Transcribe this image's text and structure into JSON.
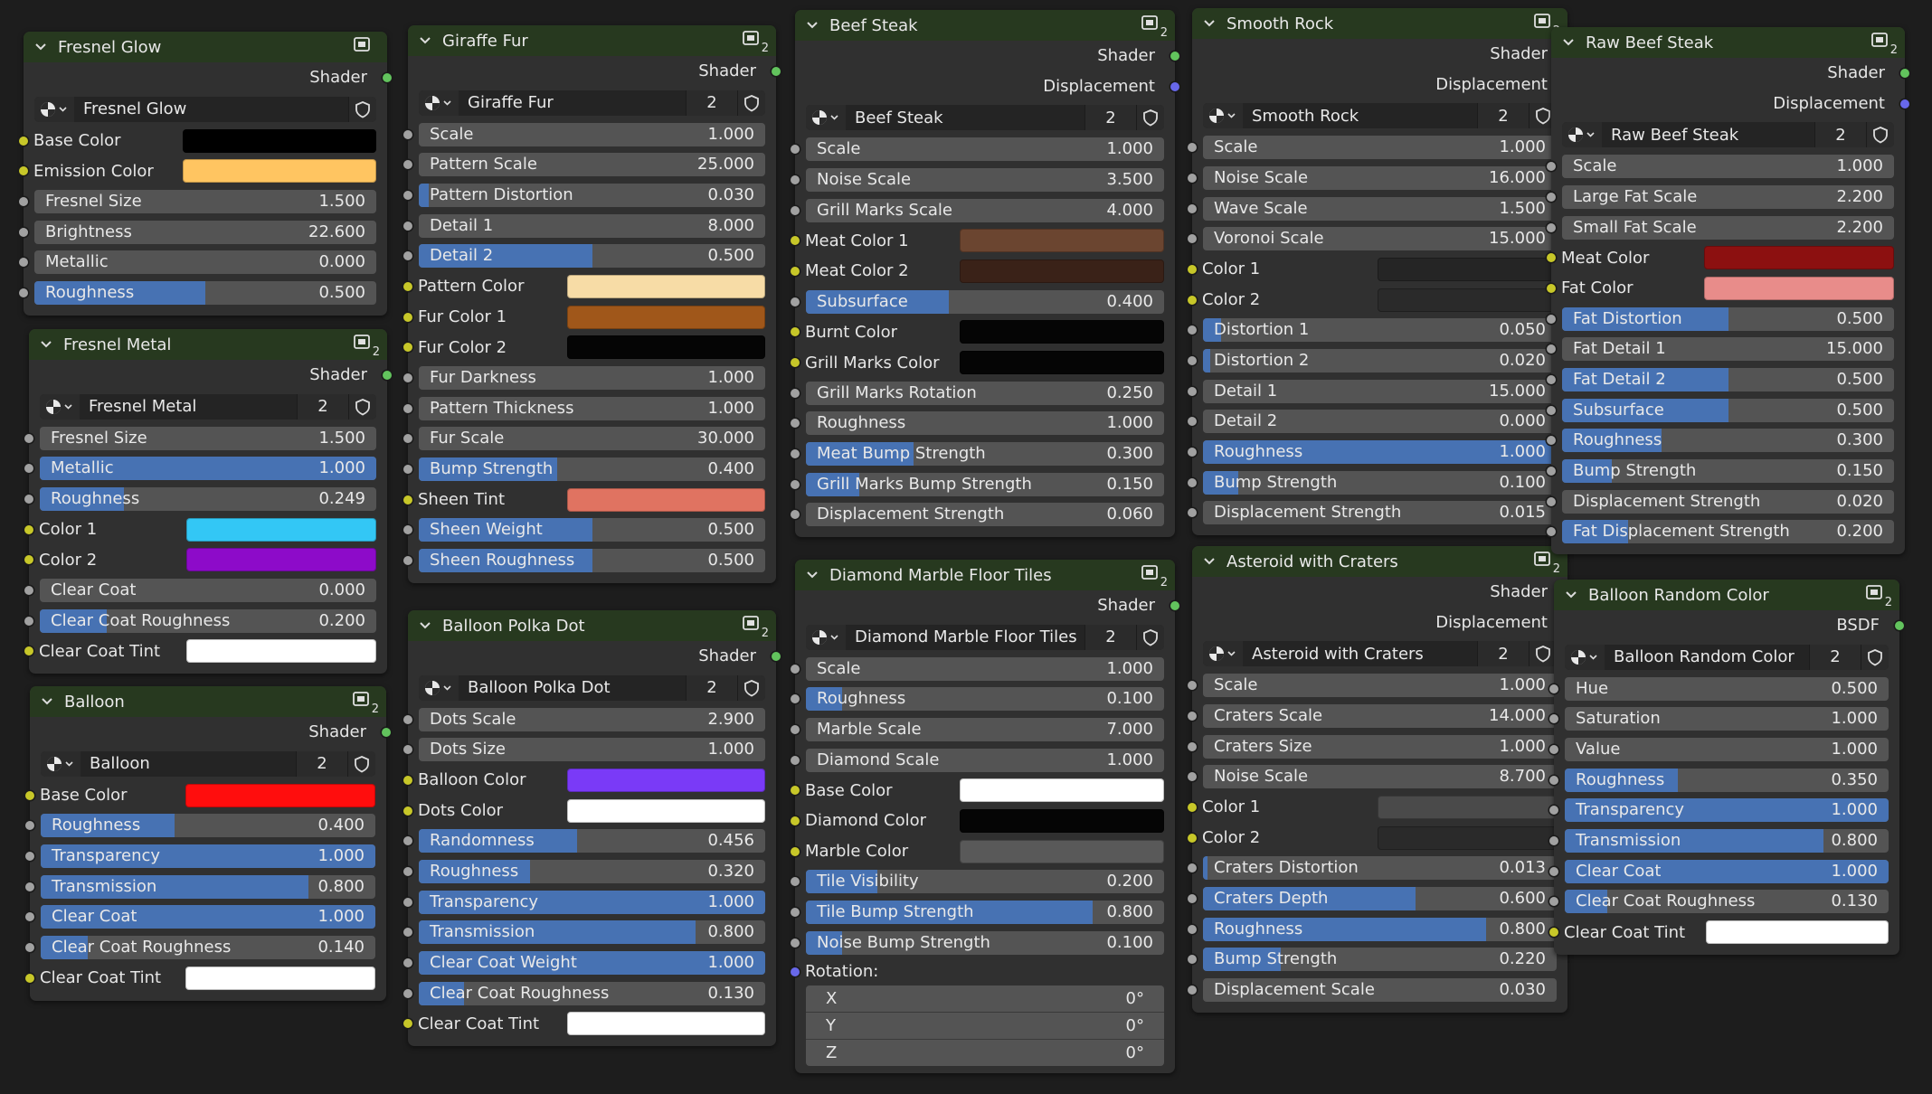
{
  "colors": {
    "background": "#1d1d1d",
    "node_body": "#303030",
    "node_header": "#27391f",
    "slider": "#545454",
    "slider_fill": "#4772b3",
    "socket_shader": "#62c35d",
    "socket_vector": "#6868ea",
    "socket_color": "#c7c729",
    "socket_float": "#a1a1a1"
  },
  "icons": {
    "collapse": "chevron-down-icon",
    "group": "node-group-icon",
    "browse": "sphere-material-icon",
    "fake_user": "shield-icon"
  },
  "nodes": [
    {
      "title": "Fresnel Glow",
      "group_badge": "",
      "outputs": [
        {
          "label": "Shader",
          "socket": "green"
        }
      ],
      "select": {
        "name": "Fresnel Glow",
        "users": ""
      },
      "inputs": [
        {
          "kind": "color",
          "label": "Base Color",
          "color": "#000000"
        },
        {
          "kind": "color",
          "label": "Emission Color",
          "color": "#ffc561"
        },
        {
          "kind": "num",
          "label": "Fresnel Size",
          "value": "1.500",
          "fill": 0
        },
        {
          "kind": "num",
          "label": "Brightness",
          "value": "22.600",
          "fill": 0
        },
        {
          "kind": "num",
          "label": "Metallic",
          "value": "0.000",
          "fill": 0
        },
        {
          "kind": "num",
          "label": "Roughness",
          "value": "0.500",
          "fill": 0.5
        }
      ]
    },
    {
      "title": "Fresnel Metal",
      "group_badge": "2",
      "outputs": [
        {
          "label": "Shader",
          "socket": "green"
        }
      ],
      "select": {
        "name": "Fresnel Metal",
        "users": "2"
      },
      "inputs": [
        {
          "kind": "num",
          "label": "Fresnel Size",
          "value": "1.500",
          "fill": 0
        },
        {
          "kind": "num",
          "label": "Metallic",
          "value": "1.000",
          "fill": 1
        },
        {
          "kind": "num",
          "label": "Roughness",
          "value": "0.249",
          "fill": 0.249
        },
        {
          "kind": "color",
          "label": "Color 1",
          "color": "#33c7f5"
        },
        {
          "kind": "color",
          "label": "Color 2",
          "color": "#8d0bc9"
        },
        {
          "kind": "num",
          "label": "Clear Coat",
          "value": "0.000",
          "fill": 0
        },
        {
          "kind": "num",
          "label": "Clear Coat Roughness",
          "value": "0.200",
          "fill": 0.2
        },
        {
          "kind": "color",
          "label": "Clear Coat Tint",
          "color": "#ffffff"
        }
      ]
    },
    {
      "title": "Balloon",
      "group_badge": "2",
      "outputs": [
        {
          "label": "Shader",
          "socket": "green"
        }
      ],
      "select": {
        "name": "Balloon",
        "users": "2"
      },
      "inputs": [
        {
          "kind": "color",
          "label": "Base Color",
          "color": "#ff0d0d"
        },
        {
          "kind": "num",
          "label": "Roughness",
          "value": "0.400",
          "fill": 0.4
        },
        {
          "kind": "num",
          "label": "Transparency",
          "value": "1.000",
          "fill": 1
        },
        {
          "kind": "num",
          "label": "Transmission",
          "value": "0.800",
          "fill": 0.8
        },
        {
          "kind": "num",
          "label": "Clear Coat",
          "value": "1.000",
          "fill": 1
        },
        {
          "kind": "num",
          "label": "Clear Coat Roughness",
          "value": "0.140",
          "fill": 0.14
        },
        {
          "kind": "color",
          "label": "Clear Coat Tint",
          "color": "#ffffff"
        }
      ]
    },
    {
      "title": "Giraffe Fur",
      "group_badge": "2",
      "outputs": [
        {
          "label": "Shader",
          "socket": "green"
        }
      ],
      "select": {
        "name": "Giraffe Fur",
        "users": "2"
      },
      "inputs": [
        {
          "kind": "num",
          "label": "Scale",
          "value": "1.000",
          "fill": 0
        },
        {
          "kind": "num",
          "label": "Pattern Scale",
          "value": "25.000",
          "fill": 0
        },
        {
          "kind": "num",
          "label": "Pattern Distortion",
          "value": "0.030",
          "fill": 0.03
        },
        {
          "kind": "num",
          "label": "Detail 1",
          "value": "8.000",
          "fill": 0
        },
        {
          "kind": "num",
          "label": "Detail 2",
          "value": "0.500",
          "fill": 0.5
        },
        {
          "kind": "color",
          "label": "Pattern Color",
          "color": "#f7dca6"
        },
        {
          "kind": "color",
          "label": "Fur Color 1",
          "color": "#a0571a"
        },
        {
          "kind": "color",
          "label": "Fur Color 2",
          "color": "#050505"
        },
        {
          "kind": "num",
          "label": "Fur Darkness",
          "value": "1.000",
          "fill": 0
        },
        {
          "kind": "num",
          "label": "Pattern Thickness",
          "value": "1.000",
          "fill": 0
        },
        {
          "kind": "num",
          "label": "Fur Scale",
          "value": "30.000",
          "fill": 0
        },
        {
          "kind": "num",
          "label": "Bump Strength",
          "value": "0.400",
          "fill": 0.4
        },
        {
          "kind": "color",
          "label": "Sheen Tint",
          "color": "#e07361"
        },
        {
          "kind": "num",
          "label": "Sheen Weight",
          "value": "0.500",
          "fill": 0.5
        },
        {
          "kind": "num",
          "label": "Sheen Roughness",
          "value": "0.500",
          "fill": 0.5
        }
      ]
    },
    {
      "title": "Balloon Polka Dot",
      "group_badge": "2",
      "outputs": [
        {
          "label": "Shader",
          "socket": "green"
        }
      ],
      "select": {
        "name": "Balloon Polka Dot",
        "users": "2"
      },
      "inputs": [
        {
          "kind": "num",
          "label": "Dots Scale",
          "value": "2.900",
          "fill": 0
        },
        {
          "kind": "num",
          "label": "Dots Size",
          "value": "1.000",
          "fill": 0
        },
        {
          "kind": "color",
          "label": "Balloon Color",
          "color": "#7a3af7"
        },
        {
          "kind": "color",
          "label": "Dots Color",
          "color": "#ffffff"
        },
        {
          "kind": "num",
          "label": "Randomness",
          "value": "0.456",
          "fill": 0.456
        },
        {
          "kind": "num",
          "label": "Roughness",
          "value": "0.320",
          "fill": 0.32
        },
        {
          "kind": "num",
          "label": "Transparency",
          "value": "1.000",
          "fill": 1
        },
        {
          "kind": "num",
          "label": "Transmission",
          "value": "0.800",
          "fill": 0.8
        },
        {
          "kind": "num",
          "label": "Clear Coat Weight",
          "value": "1.000",
          "fill": 1
        },
        {
          "kind": "num",
          "label": "Clear Coat Roughness",
          "value": "0.130",
          "fill": 0.13
        },
        {
          "kind": "color",
          "label": "Clear Coat Tint",
          "color": "#ffffff"
        }
      ]
    },
    {
      "title": "Beef Steak",
      "group_badge": "2",
      "outputs": [
        {
          "label": "Shader",
          "socket": "green"
        },
        {
          "label": "Displacement",
          "socket": "purple"
        }
      ],
      "select": {
        "name": "Beef Steak",
        "users": "2"
      },
      "inputs": [
        {
          "kind": "num",
          "label": "Scale",
          "value": "1.000",
          "fill": 0
        },
        {
          "kind": "num",
          "label": "Noise Scale",
          "value": "3.500",
          "fill": 0
        },
        {
          "kind": "num",
          "label": "Grill Marks Scale",
          "value": "4.000",
          "fill": 0
        },
        {
          "kind": "color",
          "label": "Meat Color 1",
          "color": "#6b4530"
        },
        {
          "kind": "color",
          "label": "Meat Color 2",
          "color": "#3a2218"
        },
        {
          "kind": "num",
          "label": "Subsurface",
          "value": "0.400",
          "fill": 0.4
        },
        {
          "kind": "color",
          "label": "Burnt Color",
          "color": "#050505"
        },
        {
          "kind": "color",
          "label": "Grill Marks Color",
          "color": "#050505"
        },
        {
          "kind": "num",
          "label": "Grill Marks Rotation",
          "value": "0.250",
          "fill": 0
        },
        {
          "kind": "num",
          "label": "Roughness",
          "value": "1.000",
          "fill": 0
        },
        {
          "kind": "num",
          "label": "Meat Bump Strength",
          "value": "0.300",
          "fill": 0.3
        },
        {
          "kind": "num",
          "label": "Grill Marks Bump Strength",
          "value": "0.150",
          "fill": 0.15
        },
        {
          "kind": "num",
          "label": "Displacement Strength",
          "value": "0.060",
          "fill": 0
        }
      ]
    },
    {
      "title": "Diamond Marble Floor Tiles",
      "group_badge": "2",
      "outputs": [
        {
          "label": "Shader",
          "socket": "green"
        }
      ],
      "select": {
        "name": "Diamond Marble Floor Tiles",
        "users": "2"
      },
      "inputs": [
        {
          "kind": "num",
          "label": "Scale",
          "value": "1.000",
          "fill": 0
        },
        {
          "kind": "num",
          "label": "Roughness",
          "value": "0.100",
          "fill": 0.1
        },
        {
          "kind": "num",
          "label": "Marble Scale",
          "value": "7.000",
          "fill": 0
        },
        {
          "kind": "num",
          "label": "Diamond Scale",
          "value": "1.000",
          "fill": 0
        },
        {
          "kind": "color",
          "label": "Base Color",
          "color": "#ffffff"
        },
        {
          "kind": "color",
          "label": "Diamond Color",
          "color": "#050505"
        },
        {
          "kind": "color",
          "label": "Marble Color",
          "color": "#595959"
        },
        {
          "kind": "num",
          "label": "Tile Visibility",
          "value": "0.200",
          "fill": 0.2
        },
        {
          "kind": "num",
          "label": "Tile Bump Strength",
          "value": "0.800",
          "fill": 0.8
        },
        {
          "kind": "num",
          "label": "Noise Bump Strength",
          "value": "0.100",
          "fill": 0.1
        },
        {
          "kind": "label",
          "label": "Rotation:",
          "socket": "purple"
        },
        {
          "kind": "vector",
          "rows": [
            {
              "axis": "X",
              "value": "0°"
            },
            {
              "axis": "Y",
              "value": "0°"
            },
            {
              "axis": "Z",
              "value": "0°"
            }
          ]
        }
      ]
    },
    {
      "title": "Smooth Rock",
      "group_badge": "2",
      "outputs": [
        {
          "label": "Shader",
          "socket": "green"
        },
        {
          "label": "Displacement",
          "socket": "purple"
        }
      ],
      "select": {
        "name": "Smooth Rock",
        "users": "2"
      },
      "inputs": [
        {
          "kind": "num",
          "label": "Scale",
          "value": "1.000",
          "fill": 0
        },
        {
          "kind": "num",
          "label": "Noise Scale",
          "value": "16.000",
          "fill": 0
        },
        {
          "kind": "num",
          "label": "Wave Scale",
          "value": "1.500",
          "fill": 0
        },
        {
          "kind": "num",
          "label": "Voronoi Scale",
          "value": "15.000",
          "fill": 0
        },
        {
          "kind": "color",
          "label": "Color 1",
          "color": "#252525"
        },
        {
          "kind": "color",
          "label": "Color 2",
          "color": "#2a2a2a"
        },
        {
          "kind": "num",
          "label": "Distortion 1",
          "value": "0.050",
          "fill": 0.05
        },
        {
          "kind": "num",
          "label": "Distortion 2",
          "value": "0.020",
          "fill": 0.02
        },
        {
          "kind": "num",
          "label": "Detail 1",
          "value": "15.000",
          "fill": 0
        },
        {
          "kind": "num",
          "label": "Detail 2",
          "value": "0.000",
          "fill": 0
        },
        {
          "kind": "num",
          "label": "Roughness",
          "value": "1.000",
          "fill": 1
        },
        {
          "kind": "num",
          "label": "Bump Strength",
          "value": "0.100",
          "fill": 0.1
        },
        {
          "kind": "num",
          "label": "Displacement Strength",
          "value": "0.015",
          "fill": 0
        }
      ]
    },
    {
      "title": "Asteroid with Craters",
      "group_badge": "2",
      "outputs": [
        {
          "label": "Shader",
          "socket": "green"
        },
        {
          "label": "Displacement",
          "socket": "purple"
        }
      ],
      "select": {
        "name": "Asteroid with Craters",
        "users": "2"
      },
      "inputs": [
        {
          "kind": "num",
          "label": "Scale",
          "value": "1.000",
          "fill": 0
        },
        {
          "kind": "num",
          "label": "Craters Scale",
          "value": "14.000",
          "fill": 0
        },
        {
          "kind": "num",
          "label": "Craters Size",
          "value": "1.000",
          "fill": 0
        },
        {
          "kind": "num",
          "label": "Noise Scale",
          "value": "8.700",
          "fill": 0
        },
        {
          "kind": "color",
          "label": "Color 1",
          "color": "#4a4a4a"
        },
        {
          "kind": "color",
          "label": "Color 2",
          "color": "#2a2a2a"
        },
        {
          "kind": "num",
          "label": "Craters Distortion",
          "value": "0.013",
          "fill": 0.013
        },
        {
          "kind": "num",
          "label": "Craters Depth",
          "value": "0.600",
          "fill": 0.6
        },
        {
          "kind": "num",
          "label": "Roughness",
          "value": "0.800",
          "fill": 0.8
        },
        {
          "kind": "num",
          "label": "Bump Strength",
          "value": "0.220",
          "fill": 0.22
        },
        {
          "kind": "num",
          "label": "Displacement Scale",
          "value": "0.030",
          "fill": 0
        }
      ]
    },
    {
      "title": "Raw Beef Steak",
      "group_badge": "2",
      "outputs": [
        {
          "label": "Shader",
          "socket": "green"
        },
        {
          "label": "Displacement",
          "socket": "purple"
        }
      ],
      "select": {
        "name": "Raw Beef Steak",
        "users": "2"
      },
      "inputs": [
        {
          "kind": "num",
          "label": "Scale",
          "value": "1.000",
          "fill": 0
        },
        {
          "kind": "num",
          "label": "Large Fat Scale",
          "value": "2.200",
          "fill": 0
        },
        {
          "kind": "num",
          "label": "Small Fat Scale",
          "value": "2.200",
          "fill": 0
        },
        {
          "kind": "color",
          "label": "Meat Color",
          "color": "#8c1010"
        },
        {
          "kind": "color",
          "label": "Fat Color",
          "color": "#e88c8a"
        },
        {
          "kind": "num",
          "label": "Fat Distortion",
          "value": "0.500",
          "fill": 0.5
        },
        {
          "kind": "num",
          "label": "Fat Detail 1",
          "value": "15.000",
          "fill": 0
        },
        {
          "kind": "num",
          "label": "Fat Detail 2",
          "value": "0.500",
          "fill": 0.5
        },
        {
          "kind": "num",
          "label": "Subsurface",
          "value": "0.500",
          "fill": 0.5
        },
        {
          "kind": "num",
          "label": "Roughness",
          "value": "0.300",
          "fill": 0.3
        },
        {
          "kind": "num",
          "label": "Bump Strength",
          "value": "0.150",
          "fill": 0.15
        },
        {
          "kind": "num",
          "label": "Displacement Strength",
          "value": "0.020",
          "fill": 0
        },
        {
          "kind": "num",
          "label": "Fat Displacement Strength",
          "value": "0.200",
          "fill": 0.2
        }
      ]
    },
    {
      "title": "Balloon Random Color",
      "group_badge": "2",
      "outputs": [
        {
          "label": "BSDF",
          "socket": "green"
        }
      ],
      "select": {
        "name": "Balloon Random Color",
        "users": "2"
      },
      "inputs": [
        {
          "kind": "num",
          "label": "Hue",
          "value": "0.500",
          "fill": 0
        },
        {
          "kind": "num",
          "label": "Saturation",
          "value": "1.000",
          "fill": 0
        },
        {
          "kind": "num",
          "label": "Value",
          "value": "1.000",
          "fill": 0
        },
        {
          "kind": "num",
          "label": "Roughness",
          "value": "0.350",
          "fill": 0.35
        },
        {
          "kind": "num",
          "label": "Transparency",
          "value": "1.000",
          "fill": 1
        },
        {
          "kind": "num",
          "label": "Transmission",
          "value": "0.800",
          "fill": 0.8
        },
        {
          "kind": "num",
          "label": "Clear Coat",
          "value": "1.000",
          "fill": 1
        },
        {
          "kind": "num",
          "label": "Clear Coat Roughness",
          "value": "0.130",
          "fill": 0.13
        },
        {
          "kind": "color",
          "label": "Clear Coat Tint",
          "color": "#ffffff"
        }
      ]
    }
  ]
}
